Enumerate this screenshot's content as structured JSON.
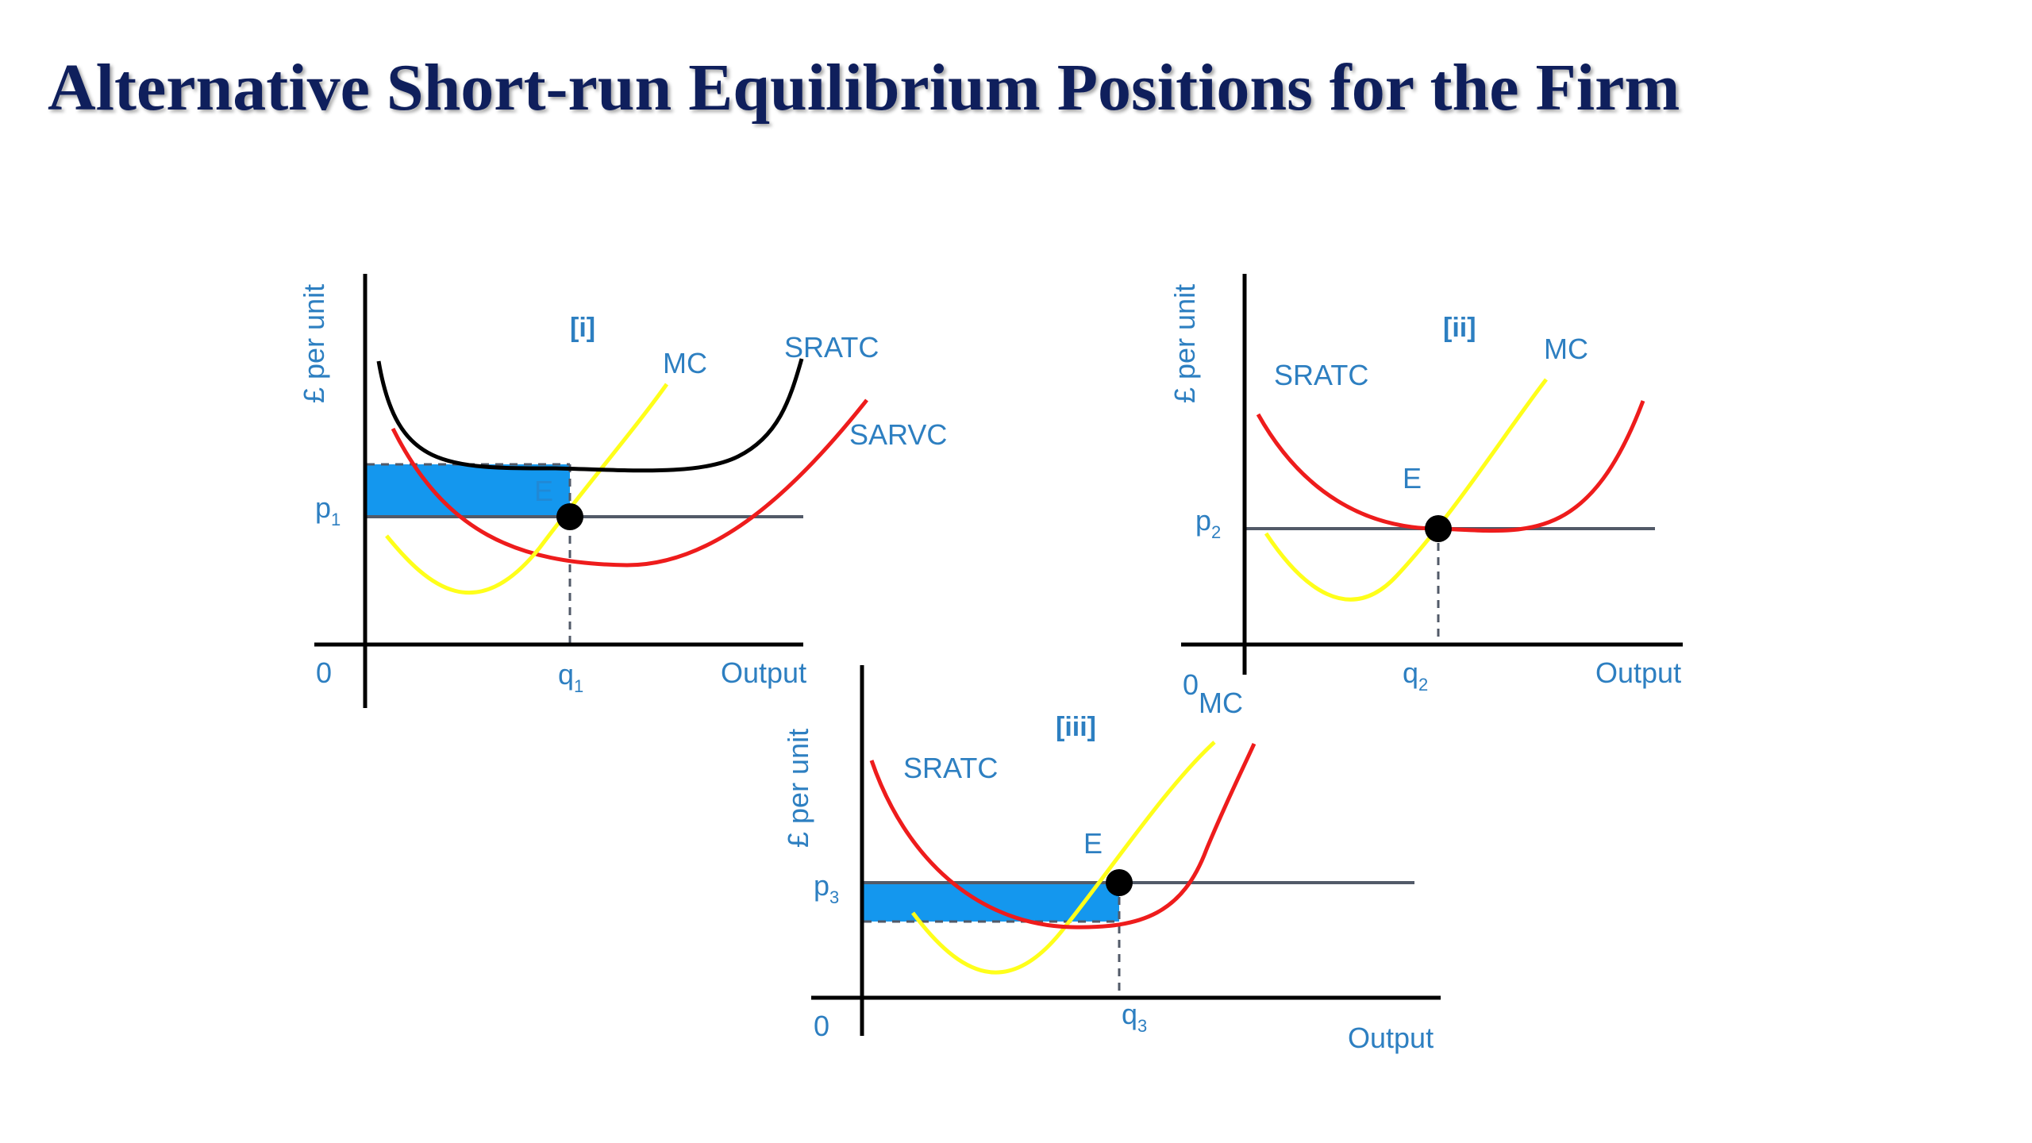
{
  "title": "Alternative Short-run Equilibrium Positions for the Firm",
  "panels": [
    {
      "id": "i",
      "tag": "[i]",
      "y_axis_label": "£ per unit",
      "x_axis_label": "Output",
      "origin_label": "0",
      "price_label": "p",
      "price_sub": "1",
      "quantity_label": "q",
      "quantity_sub": "1",
      "point_label": "E",
      "curves": [
        "MC",
        "SRATC",
        "SARVC"
      ],
      "colors": {
        "mc": "#ffff1a",
        "sratc": "#000000",
        "sarvc": "#ee1c1c",
        "loss_area": "#1497ee"
      }
    },
    {
      "id": "ii",
      "tag": "[ii]",
      "y_axis_label": "£ per unit",
      "x_axis_label": "Output",
      "origin_label": "0",
      "price_label": "p",
      "price_sub": "2",
      "quantity_label": "q",
      "quantity_sub": "2",
      "point_label": "E",
      "curves": [
        "SRATC",
        "MC"
      ],
      "colors": {
        "mc": "#ffff1a",
        "sratc": "#ee1c1c"
      }
    },
    {
      "id": "iii",
      "tag": "[iii]",
      "y_axis_label": "£ per unit",
      "x_axis_label": "Output",
      "origin_label": "0",
      "price_label": "p",
      "price_sub": "3",
      "quantity_label": "q",
      "quantity_sub": "3",
      "point_label": "E",
      "curves": [
        "SRATC",
        "MC"
      ],
      "colors": {
        "mc": "#ffff1a",
        "sratc": "#ee1c1c",
        "profit_area": "#1497ee"
      }
    }
  ]
}
